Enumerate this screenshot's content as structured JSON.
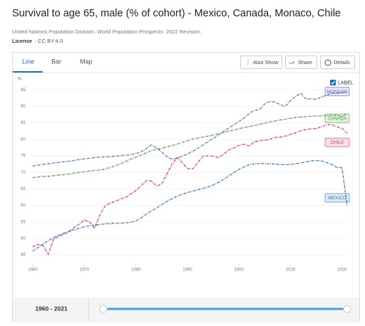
{
  "header": {
    "title": "Survival to age 65, male (% of cohort) - Mexico, Canada, Monaco, Chile",
    "source": "United Nations Population Division. World Population Prospects: 2022 Revision.",
    "license_label": "License",
    "license": ": CC BY-4.0"
  },
  "tabs": [
    "Line",
    "Bar",
    "Map"
  ],
  "buttons": [
    "Also Show",
    "Share",
    "Details"
  ],
  "legend_toggle": "LABEL",
  "range": "1960 - 2021",
  "chart_data": {
    "type": "line",
    "y_label": "%",
    "x": [
      1960,
      1961,
      1962,
      1963,
      1964,
      1965,
      1966,
      1967,
      1968,
      1969,
      1970,
      1971,
      1972,
      1973,
      1974,
      1975,
      1976,
      1977,
      1978,
      1979,
      1980,
      1981,
      1982,
      1983,
      1984,
      1985,
      1986,
      1987,
      1988,
      1989,
      1990,
      1991,
      1992,
      1993,
      1994,
      1995,
      1996,
      1997,
      1998,
      1999,
      2000,
      2001,
      2002,
      2003,
      2004,
      2005,
      2006,
      2007,
      2008,
      2009,
      2010,
      2011,
      2012,
      2013,
      2014,
      2015,
      2016,
      2017,
      2018,
      2019,
      2020,
      2021
    ],
    "xlim": [
      1960,
      2021
    ],
    "xticks": [
      1960,
      1970,
      1980,
      1990,
      2000,
      2010,
      2020
    ],
    "ylim": [
      42,
      97
    ],
    "yticks": [
      45,
      50,
      55,
      60,
      65,
      70,
      75,
      80,
      85,
      90,
      95
    ],
    "series": [
      {
        "name": "MONACO",
        "color": "#5b67ad",
        "values": [
          71.9,
          72.2,
          72.4,
          72.6,
          72.8,
          73.0,
          73.2,
          73.4,
          73.6,
          73.9,
          74.1,
          74.3,
          74.5,
          74.6,
          74.7,
          74.8,
          74.9,
          75.0,
          75.2,
          75.4,
          75.7,
          76.2,
          77.2,
          78.3,
          77.4,
          76.2,
          74.8,
          74.0,
          74.3,
          74.9,
          75.6,
          76.4,
          77.3,
          78.3,
          79.3,
          80.3,
          81.3,
          82.4,
          83.4,
          84.4,
          85.4,
          86.5,
          87.8,
          88.8,
          89.0,
          90.8,
          91.5,
          91.3,
          90.5,
          90.0,
          91.8,
          93.0,
          94.0,
          92.2,
          92.3,
          92.1,
          92.8,
          93.4,
          94.0,
          93.9,
          94.2,
          94.5
        ]
      },
      {
        "name": "CANADA",
        "color": "#4c9a46",
        "values": [
          68.4,
          68.6,
          68.8,
          68.8,
          69.0,
          69.2,
          69.3,
          69.5,
          69.8,
          70.0,
          70.2,
          70.4,
          70.6,
          70.7,
          71.0,
          71.5,
          72.0,
          72.6,
          73.3,
          74.0,
          74.6,
          75.3,
          75.9,
          76.6,
          77.0,
          77.3,
          77.7,
          78.1,
          78.6,
          79.1,
          79.6,
          80.1,
          80.4,
          80.7,
          81.0,
          81.3,
          81.7,
          82.1,
          82.5,
          82.8,
          83.2,
          83.6,
          83.9,
          84.2,
          84.6,
          84.9,
          85.3,
          85.6,
          85.9,
          86.1,
          86.4,
          86.6,
          86.8,
          86.9,
          87.0,
          87.1,
          87.1,
          87.2,
          87.2,
          87.3,
          86.9,
          87.9
        ]
      },
      {
        "name": "CHILE",
        "color": "#e2306c",
        "values": [
          47.5,
          48.2,
          47.8,
          45.2,
          49.8,
          50.6,
          51.2,
          52.0,
          53.3,
          54.3,
          55.6,
          55.0,
          53.1,
          57.0,
          59.8,
          60.7,
          61.2,
          62.0,
          62.4,
          63.5,
          64.5,
          66.0,
          67.5,
          67.4,
          65.9,
          66.5,
          69.5,
          72.5,
          74.5,
          73.0,
          71.2,
          71.0,
          73.0,
          74.9,
          75.0,
          74.9,
          74.5,
          75.5,
          76.8,
          77.4,
          78.2,
          78.5,
          78.0,
          79.3,
          79.6,
          79.8,
          80.0,
          80.6,
          80.7,
          81.0,
          81.5,
          82.0,
          82.7,
          83.0,
          83.2,
          83.3,
          83.8,
          84.4,
          84.5,
          83.8,
          83.3,
          81.9
        ]
      },
      {
        "name": "MEXICO",
        "color": "#2f6fc4",
        "values": [
          46.2,
          47.2,
          48.3,
          49.3,
          50.2,
          51.0,
          51.6,
          52.1,
          52.6,
          53.1,
          53.5,
          53.8,
          54.0,
          54.2,
          54.4,
          54.5,
          54.6,
          54.6,
          54.7,
          54.9,
          55.3,
          56.2,
          57.3,
          58.3,
          59.2,
          60.2,
          61.2,
          62.0,
          62.8,
          63.4,
          63.9,
          64.3,
          64.7,
          65.1,
          65.6,
          66.2,
          67.0,
          67.9,
          68.9,
          69.9,
          70.9,
          71.7,
          72.3,
          72.6,
          72.7,
          72.7,
          72.6,
          72.5,
          72.4,
          72.3,
          72.4,
          72.6,
          72.9,
          73.2,
          73.5,
          73.6,
          73.5,
          73.0,
          72.4,
          71.5,
          71.4,
          59.9
        ]
      }
    ]
  }
}
